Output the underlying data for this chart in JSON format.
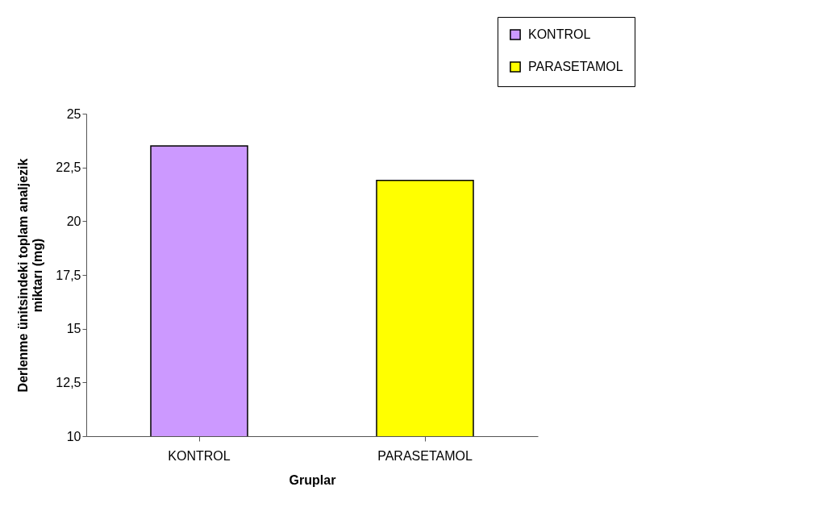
{
  "chart_data": {
    "type": "bar",
    "xlabel": "Gruplar",
    "ylabel": "Derlenme ünitsindeki toplam analjezik miktarı (mg)",
    "categories": [
      "KONTROL",
      "PARASETAMOL"
    ],
    "series": [
      {
        "name": "KONTROL",
        "color": "#cc99ff",
        "values": [
          23.5,
          null
        ]
      },
      {
        "name": "PARASETAMOL",
        "color": "#ffff00",
        "values": [
          null,
          21.9
        ]
      }
    ],
    "ylim": [
      10,
      25
    ],
    "yticks": [
      10,
      {
        "value": 12.5,
        "label": "12,5"
      },
      15,
      {
        "value": 17.5,
        "label": "17,5"
      },
      20,
      {
        "value": 22.5,
        "label": "22,5"
      },
      25
    ],
    "grid": false,
    "legend": "top right"
  }
}
